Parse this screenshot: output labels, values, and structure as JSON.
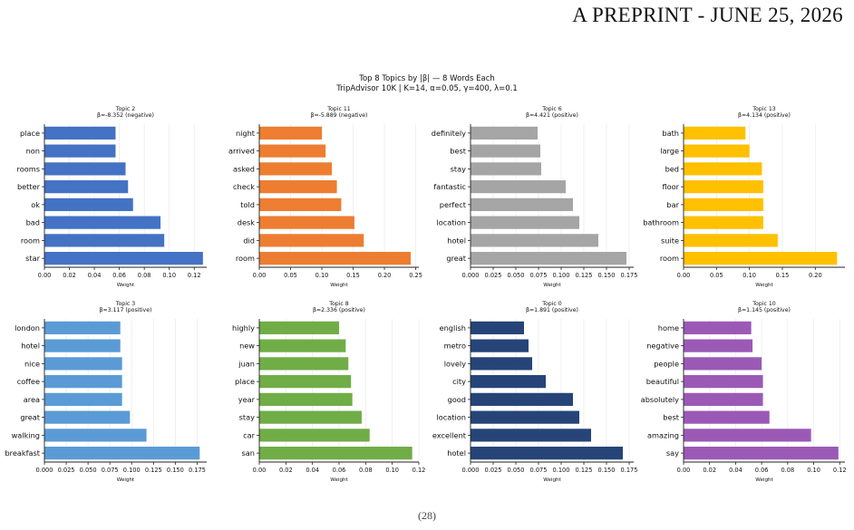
{
  "page_header": "A PREPRINT - JUNE 25, 2026",
  "page_footer": "(28)",
  "chart_data": {
    "type": "bar",
    "orientation": "horizontal",
    "title": "Top 8 Topics by |β| — 8 Words Each",
    "subtitle": "TripAdvisor 10K | K=14, α=0.05, γ=400, λ=0.1",
    "grid": "vertical-light",
    "xlabel": "Weight",
    "panels": [
      {
        "title": "Topic 2",
        "subtitle": "β=-8.352 (negative)",
        "color": "#4472C4",
        "categories": [
          "place",
          "non",
          "rooms",
          "better",
          "ok",
          "bad",
          "room",
          "star"
        ],
        "values": [
          0.057,
          0.057,
          0.065,
          0.067,
          0.071,
          0.093,
          0.096,
          0.127
        ],
        "xlim": [
          0,
          0.13
        ],
        "xticks": [
          0.0,
          0.02,
          0.04,
          0.06,
          0.08,
          0.1,
          0.12
        ],
        "xticklabels": [
          "0.00",
          "0.02",
          "0.04",
          "0.06",
          "0.08",
          "0.10",
          "0.12"
        ]
      },
      {
        "title": "Topic 11",
        "subtitle": "β=-5.889 (negative)",
        "color": "#ED7D31",
        "categories": [
          "night",
          "arrived",
          "asked",
          "check",
          "told",
          "desk",
          "did",
          "room"
        ],
        "values": [
          0.1,
          0.106,
          0.116,
          0.124,
          0.131,
          0.152,
          0.167,
          0.242
        ],
        "xlim": [
          0,
          0.255
        ],
        "xticks": [
          0.0,
          0.05,
          0.1,
          0.15,
          0.2,
          0.25
        ],
        "xticklabels": [
          "0.00",
          "0.05",
          "0.10",
          "0.15",
          "0.20",
          "0.25"
        ]
      },
      {
        "title": "Topic 6",
        "subtitle": "β=4.421 (positive)",
        "color": "#A5A5A5",
        "categories": [
          "definitely",
          "best",
          "stay",
          "fantastic",
          "perfect",
          "location",
          "hotel",
          "great"
        ],
        "values": [
          0.074,
          0.077,
          0.078,
          0.105,
          0.113,
          0.12,
          0.141,
          0.172
        ],
        "xlim": [
          0,
          0.18
        ],
        "xticks": [
          0.0,
          0.025,
          0.05,
          0.075,
          0.1,
          0.125,
          0.15,
          0.175
        ],
        "xticklabels": [
          "0.000",
          "0.025",
          "0.050",
          "0.075",
          "0.100",
          "0.125",
          "0.150",
          "0.175"
        ]
      },
      {
        "title": "Topic 13",
        "subtitle": "β=4.134 (positive)",
        "color": "#FFC000",
        "categories": [
          "bath",
          "large",
          "bed",
          "floor",
          "bar",
          "bathroom",
          "suite",
          "room"
        ],
        "values": [
          0.094,
          0.1,
          0.119,
          0.121,
          0.121,
          0.121,
          0.143,
          0.233
        ],
        "xlim": [
          0,
          0.245
        ],
        "xticks": [
          0.0,
          0.05,
          0.1,
          0.15,
          0.2
        ],
        "xticklabels": [
          "0.00",
          "0.05",
          "0.10",
          "0.15",
          "0.20"
        ]
      },
      {
        "title": "Topic 3",
        "subtitle": "β=3.117 (positive)",
        "color": "#5B9BD5",
        "categories": [
          "london",
          "hotel",
          "nice",
          "coffee",
          "area",
          "great",
          "walking",
          "breakfast"
        ],
        "values": [
          0.087,
          0.087,
          0.089,
          0.089,
          0.089,
          0.098,
          0.117,
          0.178
        ],
        "xlim": [
          0,
          0.186
        ],
        "xticks": [
          0.0,
          0.025,
          0.05,
          0.075,
          0.1,
          0.125,
          0.15,
          0.175
        ],
        "xticklabels": [
          "0.000",
          "0.025",
          "0.050",
          "0.075",
          "0.100",
          "0.125",
          "0.150",
          "0.175"
        ]
      },
      {
        "title": "Topic 8",
        "subtitle": "β=2.336 (positive)",
        "color": "#70AD47",
        "categories": [
          "highly",
          "new",
          "juan",
          "place",
          "year",
          "stay",
          "car",
          "san"
        ],
        "values": [
          0.06,
          0.065,
          0.067,
          0.069,
          0.07,
          0.077,
          0.083,
          0.115
        ],
        "xlim": [
          0,
          0.12
        ],
        "xticks": [
          0.0,
          0.02,
          0.04,
          0.06,
          0.08,
          0.1,
          0.12
        ],
        "xticklabels": [
          "0.00",
          "0.02",
          "0.04",
          "0.06",
          "0.08",
          "0.10",
          "0.12"
        ]
      },
      {
        "title": "Topic 0",
        "subtitle": "β=1.891 (positive)",
        "color": "#264478",
        "categories": [
          "english",
          "metro",
          "lovely",
          "city",
          "good",
          "location",
          "excellent",
          "hotel"
        ],
        "values": [
          0.059,
          0.064,
          0.068,
          0.083,
          0.113,
          0.12,
          0.133,
          0.168
        ],
        "xlim": [
          0,
          0.18
        ],
        "xticks": [
          0.0,
          0.025,
          0.05,
          0.075,
          0.1,
          0.125,
          0.15,
          0.175
        ],
        "xticklabels": [
          "0.000",
          "0.025",
          "0.050",
          "0.075",
          "0.100",
          "0.125",
          "0.150",
          "0.175"
        ]
      },
      {
        "title": "Topic 10",
        "subtitle": "β=1.145 (positive)",
        "color": "#9B59B6",
        "categories": [
          "home",
          "negative",
          "people",
          "beautiful",
          "absolutely",
          "best",
          "amazing",
          "say"
        ],
        "values": [
          0.052,
          0.053,
          0.06,
          0.061,
          0.061,
          0.066,
          0.098,
          0.119
        ],
        "xlim": [
          0,
          0.124
        ],
        "xticks": [
          0.0,
          0.02,
          0.04,
          0.06,
          0.08,
          0.1,
          0.12
        ],
        "xticklabels": [
          "0.00",
          "0.02",
          "0.04",
          "0.06",
          "0.08",
          "0.10",
          "0.12"
        ]
      }
    ]
  }
}
